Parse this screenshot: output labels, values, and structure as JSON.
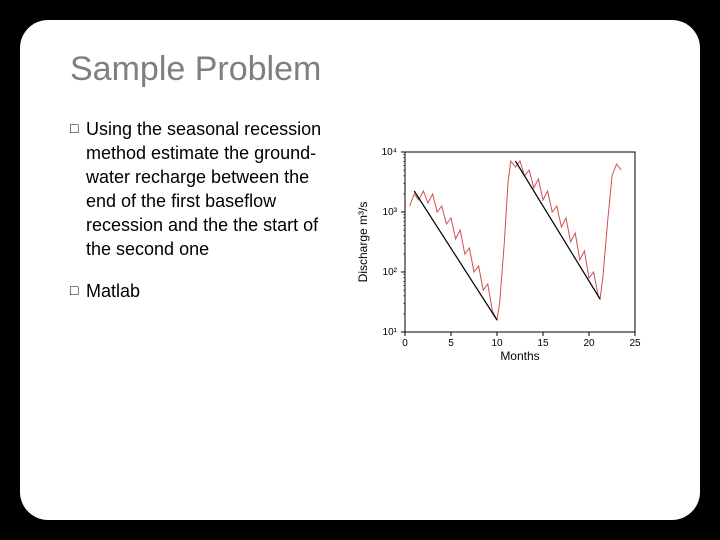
{
  "title": "Sample Problem",
  "bullets": [
    "Using the seasonal recession method estimate the ground-water recharge between the end of the first baseflow recession and the the start of the second one",
    "Matlab"
  ],
  "chart": {
    "type": "line-log",
    "xlabel": "Months",
    "ylabel": "Discharge m³/s",
    "xlim": [
      0,
      25
    ],
    "xticks": [
      0,
      5,
      10,
      15,
      20,
      25
    ],
    "ylim_exp": [
      1,
      4
    ],
    "yticks_exp": [
      1,
      2,
      3,
      4
    ],
    "ytick_labels": [
      "10¹",
      "10²",
      "10³",
      "10⁴"
    ],
    "background_color": "#ffffff",
    "axis_color": "#000000",
    "grid": false,
    "axis_fontsize": 12,
    "tick_fontsize": 10,
    "series_data": {
      "color": "#d05050",
      "linewidth": 1,
      "points": [
        [
          0.5,
          3.1
        ],
        [
          1.0,
          3.3
        ],
        [
          1.5,
          3.2
        ],
        [
          2.0,
          3.35
        ],
        [
          2.5,
          3.15
        ],
        [
          3.0,
          3.3
        ],
        [
          3.5,
          3.0
        ],
        [
          4.0,
          3.1
        ],
        [
          4.5,
          2.8
        ],
        [
          5.0,
          2.9
        ],
        [
          5.5,
          2.55
        ],
        [
          6.0,
          2.7
        ],
        [
          6.5,
          2.3
        ],
        [
          7.0,
          2.4
        ],
        [
          7.5,
          2.0
        ],
        [
          8.0,
          2.1
        ],
        [
          8.5,
          1.7
        ],
        [
          9.0,
          1.8
        ],
        [
          9.5,
          1.35
        ],
        [
          10.0,
          1.2
        ],
        [
          10.3,
          1.5
        ],
        [
          10.8,
          2.5
        ],
        [
          11.2,
          3.5
        ],
        [
          11.5,
          3.85
        ],
        [
          12.0,
          3.75
        ],
        [
          12.5,
          3.85
        ],
        [
          13.0,
          3.6
        ],
        [
          13.5,
          3.7
        ],
        [
          14.0,
          3.4
        ],
        [
          14.5,
          3.55
        ],
        [
          15.0,
          3.2
        ],
        [
          15.5,
          3.35
        ],
        [
          16.0,
          3.0
        ],
        [
          16.5,
          3.1
        ],
        [
          17.0,
          2.75
        ],
        [
          17.5,
          2.9
        ],
        [
          18.0,
          2.5
        ],
        [
          18.5,
          2.65
        ],
        [
          19.0,
          2.2
        ],
        [
          19.5,
          2.35
        ],
        [
          20.0,
          1.9
        ],
        [
          20.5,
          2.0
        ],
        [
          21.0,
          1.6
        ],
        [
          21.2,
          1.55
        ],
        [
          21.5,
          1.9
        ],
        [
          22.0,
          2.8
        ],
        [
          22.5,
          3.6
        ],
        [
          23.0,
          3.8
        ],
        [
          23.5,
          3.7
        ]
      ]
    },
    "regression_lines": {
      "color": "#000000",
      "linewidth": 1.2,
      "lines": [
        [
          [
            1.0,
            3.35
          ],
          [
            10.0,
            1.2
          ]
        ],
        [
          [
            12.0,
            3.85
          ],
          [
            21.2,
            1.55
          ]
        ]
      ]
    }
  }
}
